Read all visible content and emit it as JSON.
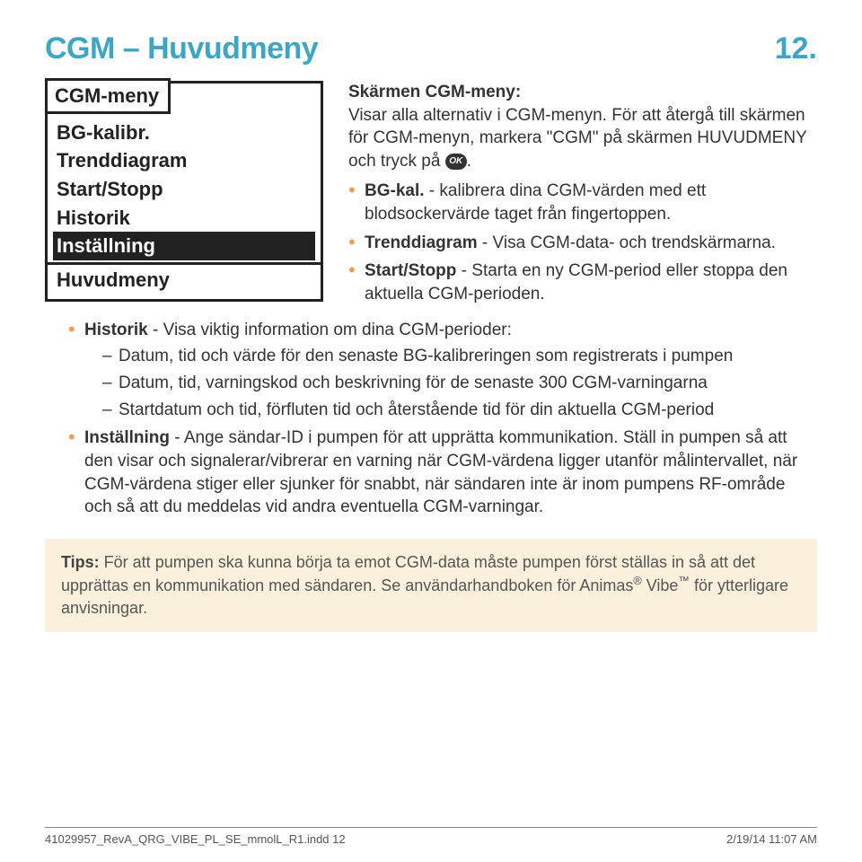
{
  "colors": {
    "accent": "#3da6c4",
    "bullet": "#e8a05a",
    "body_text": "#333333",
    "tip_bg": "#faf0dc",
    "tip_text": "#555555",
    "device_border": "#222222"
  },
  "header": {
    "title": "CGM – Huvudmeny",
    "page_number": "12."
  },
  "device_screen": {
    "tab": "CGM-meny",
    "items": [
      "BG-kalibr.",
      "Trenddiagram",
      "Start/Stopp",
      "Historik",
      "Inställning"
    ],
    "selected_index": 4,
    "footer": "Huvudmeny"
  },
  "right": {
    "subhead": "Skärmen CGM-meny:",
    "intro1": "Visar alla alternativ i CGM-menyn. För att återgå till skärmen för CGM-menyn, markera \"CGM\" på skärmen HUVUDMENY och tryck på",
    "ok_label": "OK",
    "intro_tail": ".",
    "bullets": [
      {
        "label": "BG-kal.",
        "text": " - kalibrera dina CGM-värden med ett blodsockervärde taget från fingertoppen."
      },
      {
        "label": "Trenddiagram",
        "text": " - Visa CGM-data- och trendskärmarna."
      },
      {
        "label": "Start/Stopp",
        "text": " - Starta en ny CGM-period eller stoppa den aktuella CGM-perioden."
      }
    ]
  },
  "full": {
    "historik_label": "Historik",
    "historik_text": " - Visa viktig information om dina CGM-perioder:",
    "historik_items": [
      "Datum, tid och värde för den senaste BG-kalibreringen som registrerats i pumpen",
      "Datum, tid, varningskod och beskrivning för de senaste 300 CGM-varningarna",
      "Startdatum och tid, förfluten tid och återstående tid för din aktuella CGM-period"
    ],
    "installning_label": "Inställning",
    "installning_text": " - Ange sändar-ID i pumpen för att upprätta kommunikation. Ställ in pumpen så att den visar och signalerar/vibrerar en varning när CGM-värdena ligger utanför målintervallet, när CGM-värdena stiger eller sjunker för snabbt, när sändaren inte är inom pumpens RF-område och så att du meddelas vid andra eventuella CGM-varningar."
  },
  "tip": {
    "label": "Tips:",
    "text_before": " För att pumpen ska kunna börja ta emot CGM-data måste pumpen först ställas in så att det upprättas en kommunikation med sändaren. Se användarhandboken för Animas",
    "reg": "®",
    "product": " Vibe",
    "tm": "™",
    "text_after": " för ytterligare anvisningar."
  },
  "footer": {
    "left": "41029957_RevA_QRG_VIBE_PL_SE_mmolL_R1.indd   12",
    "right": "2/19/14   11:07 AM"
  }
}
